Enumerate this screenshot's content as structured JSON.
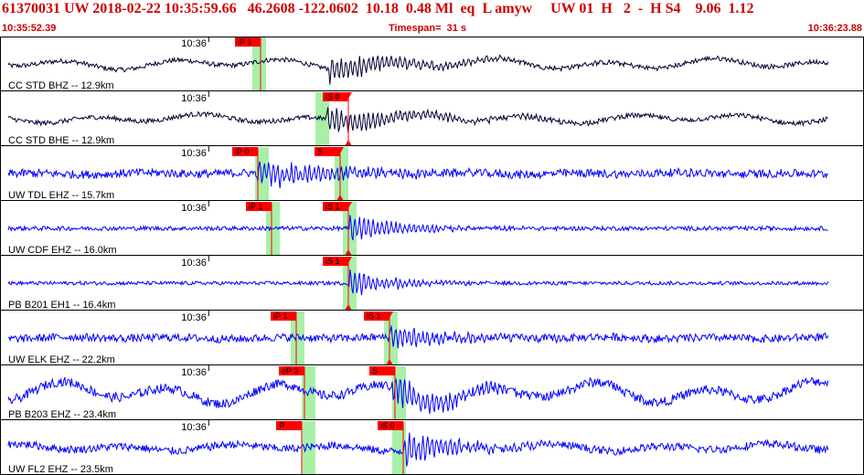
{
  "header": {
    "event_line": "61370031 UW 2018-02-22 10:35:59.66   46.2608 -122.0602  10.18  0.48 Ml  eq  L amyw     UW 01  H   2  -  H S4    9.06  1.12",
    "start_time": "10:35:52.39",
    "timespan": "Timespan=  31 s",
    "end_time": "10:36:23.88"
  },
  "colors": {
    "trace_short_period": "#0000ff",
    "trace_broadband": "#000033",
    "pick_box": "#ff0000",
    "pick_window": "#a8f0a8",
    "frame": "#000000",
    "text": "#000000",
    "header_text": "#cc0000"
  },
  "chart_data": {
    "type": "line",
    "title": "",
    "xlabel": "",
    "ylabel": "",
    "time_range_s": [
      0,
      31.49
    ],
    "minute_tick_label": "10:36",
    "minute_tick_time_s": 7.61,
    "series": [
      {
        "name": "CC STD BHZ -- 12.9km",
        "color": "#000033",
        "noise": 0.18,
        "long_period": 0.55,
        "onset_s": 12.0,
        "peak": 1.1,
        "decay_s": 3.0,
        "picks": [
          {
            "label": "iP 1",
            "time_s": 9.5,
            "window_s": [
              9.2,
              9.7
            ]
          }
        ]
      },
      {
        "name": "CC STD BHE -- 12.9km",
        "color": "#000033",
        "noise": 0.18,
        "long_period": 0.45,
        "onset_s": 11.9,
        "peak": 1.1,
        "decay_s": 3.2,
        "picks": [
          {
            "label": "iS 0",
            "time_s": 12.7,
            "window_s": [
              11.5,
              12.0
            ],
            "marker": true
          }
        ]
      },
      {
        "name": "UW TDL EHZ -- 15.7km",
        "color": "#0000ff",
        "noise": 0.32,
        "long_period": 0.1,
        "onset_s": 9.4,
        "peak": 1.2,
        "decay_s": 2.6,
        "picks": [
          {
            "label": "iP 0",
            "time_s": 9.4,
            "window_s": [
              9.3,
              9.8
            ]
          },
          {
            "label": "S",
            "time_s": 12.4,
            "window_s": [
              12.2,
              12.7
            ],
            "marker": true
          }
        ]
      },
      {
        "name": "UW CDF EHZ -- 16.0km",
        "color": "#0000ff",
        "noise": 0.16,
        "long_period": 0.0,
        "onset_s": 12.7,
        "peak": 1.2,
        "decay_s": 1.8,
        "picks": [
          {
            "label": "iP 1",
            "time_s": 9.9,
            "window_s": [
              9.7,
              10.2
            ]
          },
          {
            "label": "iS 1",
            "time_s": 12.7,
            "window_s": [
              12.5,
              13.0
            ],
            "marker": true
          }
        ]
      },
      {
        "name": "PB B201 EH1 -- 16.4km",
        "color": "#0000ff",
        "noise": 0.14,
        "long_period": 0.0,
        "onset_s": 12.7,
        "peak": 1.2,
        "decay_s": 1.5,
        "picks": [
          {
            "label": "iS 1",
            "time_s": 12.7,
            "window_s": [
              12.5,
              13.0
            ],
            "marker": true
          }
        ]
      },
      {
        "name": "UW ELK EHZ -- 22.2km",
        "color": "#0000ff",
        "noise": 0.3,
        "long_period": 0.1,
        "onset_s": 14.2,
        "peak": 1.2,
        "decay_s": 1.8,
        "picks": [
          {
            "label": "iP 1",
            "time_s": 10.8,
            "window_s": [
              10.6,
              11.1
            ]
          },
          {
            "label": "iS 1",
            "time_s": 14.2,
            "window_s": [
              14.0,
              14.5
            ],
            "marker": true
          }
        ]
      },
      {
        "name": "PB B203 EHZ -- 23.4km",
        "color": "#0000ff",
        "noise": 0.35,
        "long_period": 1.1,
        "onset_s": 14.3,
        "peak": 1.4,
        "decay_s": 2.2,
        "picks": [
          {
            "label": "eP 3",
            "time_s": 11.1,
            "window_s": [
              11.0,
              11.5
            ]
          },
          {
            "label": "S",
            "time_s": 14.4,
            "window_s": [
              14.3,
              14.8
            ]
          }
        ]
      },
      {
        "name": "UW FL2 EHZ -- 23.5km",
        "color": "#0000ff",
        "noise": 0.3,
        "long_period": 0.35,
        "onset_s": 14.7,
        "peak": 1.3,
        "decay_s": 2.0,
        "picks": [
          {
            "label": "iS 0",
            "time_s": 14.7,
            "window_s": [
              14.3,
              14.8
            ]
          },
          {
            "label": "P",
            "time_s": 11.0,
            "window_s": [
              11.0,
              11.5
            ]
          }
        ]
      }
    ]
  }
}
